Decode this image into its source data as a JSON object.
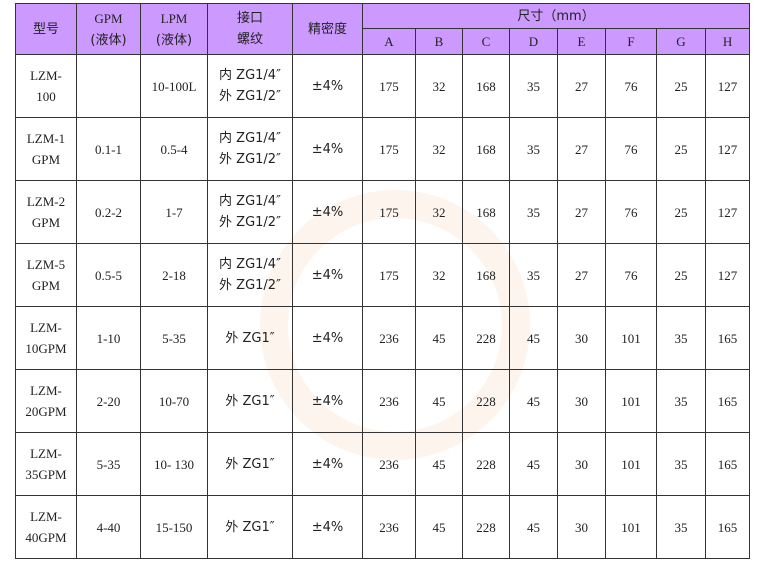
{
  "header": {
    "model": "型号",
    "gpm": [
      "GPM",
      "(液体)"
    ],
    "lpm": [
      "LPM",
      "(液体)"
    ],
    "port": [
      "接口",
      "螺纹"
    ],
    "accuracy": "精密度",
    "dimensions": "尺寸（mm）",
    "dim_cols": [
      "A",
      "B",
      "C",
      "D",
      "E",
      "F",
      "G",
      "H"
    ]
  },
  "rows": [
    {
      "model": [
        "LZM-",
        "100"
      ],
      "gpm": "",
      "lpm": "10-100L",
      "port": [
        "内 ZG1/4″",
        "外 ZG1/2″"
      ],
      "acc": "±4%",
      "dims": [
        "175",
        "32",
        "168",
        "35",
        "27",
        "76",
        "25",
        "127"
      ]
    },
    {
      "model": [
        "LZM-1",
        "GPM"
      ],
      "gpm": "0.1-1",
      "lpm": "0.5-4",
      "port": [
        "内 ZG1/4″",
        "外 ZG1/2″"
      ],
      "acc": "±4%",
      "dims": [
        "175",
        "32",
        "168",
        "35",
        "27",
        "76",
        "25",
        "127"
      ]
    },
    {
      "model": [
        "LZM-2",
        "GPM"
      ],
      "gpm": "0.2-2",
      "lpm": "1-7",
      "port": [
        "内 ZG1/4″",
        "外 ZG1/2″"
      ],
      "acc": "±4%",
      "dims": [
        "175",
        "32",
        "168",
        "35",
        "27",
        "76",
        "25",
        "127"
      ]
    },
    {
      "model": [
        "LZM-5",
        "GPM"
      ],
      "gpm": "0.5-5",
      "lpm": "2-18",
      "port": [
        "内 ZG1/4″",
        "外 ZG1/2″"
      ],
      "acc": "±4%",
      "dims": [
        "175",
        "32",
        "168",
        "35",
        "27",
        "76",
        "25",
        "127"
      ]
    },
    {
      "model": [
        "LZM-",
        "10GPM"
      ],
      "gpm": "1-10",
      "lpm": "5-35",
      "port": [
        "外 ZG1″",
        ""
      ],
      "acc": "±4%",
      "dims": [
        "236",
        "45",
        "228",
        "45",
        "30",
        "101",
        "35",
        "165"
      ]
    },
    {
      "model": [
        "LZM-",
        "20GPM"
      ],
      "gpm": "2-20",
      "lpm": "10-70",
      "port": [
        "外 ZG1″",
        ""
      ],
      "acc": "±4%",
      "dims": [
        "236",
        "45",
        "228",
        "45",
        "30",
        "101",
        "35",
        "165"
      ]
    },
    {
      "model": [
        "LZM-",
        "35GPM"
      ],
      "gpm": "5-35",
      "lpm": "10- 130",
      "port": [
        "外 ZG1″",
        ""
      ],
      "acc": "±4%",
      "dims": [
        "236",
        "45",
        "228",
        "45",
        "30",
        "101",
        "35",
        "165"
      ]
    },
    {
      "model": [
        "LZM-",
        "40GPM"
      ],
      "gpm": "4-40",
      "lpm": "15-150",
      "port": [
        "外 ZG1″",
        ""
      ],
      "acc": "±4%",
      "dims": [
        "236",
        "45",
        "228",
        "45",
        "30",
        "101",
        "35",
        "165"
      ]
    }
  ]
}
